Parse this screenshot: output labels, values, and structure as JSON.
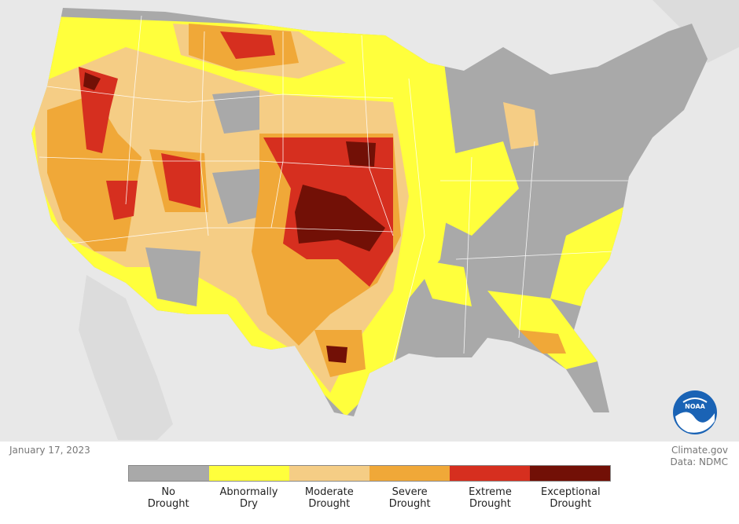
{
  "date": "January 17, 2023",
  "credit": {
    "line1": "Climate.gov",
    "line2": "Data: NDMC"
  },
  "logo_text": "NOAA",
  "legend": [
    {
      "l1": "No",
      "l2": "Drought",
      "color": "#a9a9a9"
    },
    {
      "l1": "Abnormally",
      "l2": "Dry",
      "color": "#ffff3c"
    },
    {
      "l1": "Moderate",
      "l2": "Drought",
      "color": "#f5cd85"
    },
    {
      "l1": "Severe",
      "l2": "Drought",
      "color": "#f0a838"
    },
    {
      "l1": "Extreme",
      "l2": "Drought",
      "color": "#d62f1f"
    },
    {
      "l1": "Exceptional",
      "l2": "Drought",
      "color": "#721006"
    }
  ]
}
